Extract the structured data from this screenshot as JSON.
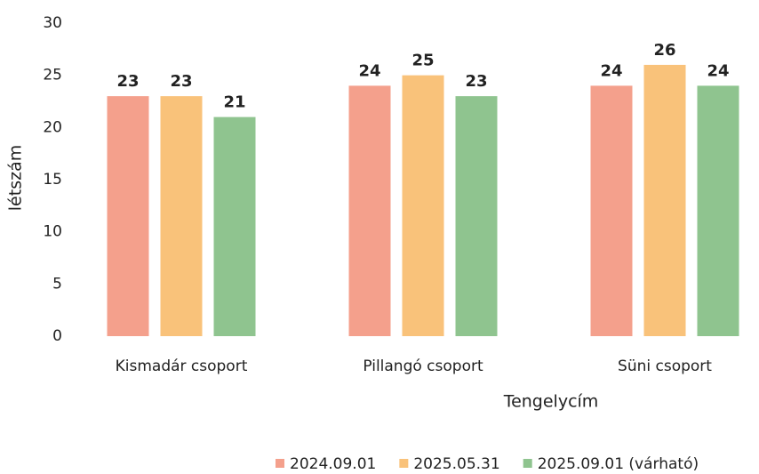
{
  "chart_data": {
    "type": "bar",
    "categories": [
      "Kismadár csoport",
      "Pillangó csoport",
      "Süni csoport"
    ],
    "series": [
      {
        "name": "2024.09.01",
        "color": "#f4a08c",
        "values": [
          23,
          24,
          24
        ]
      },
      {
        "name": "2025.05.31",
        "color": "#f9c27a",
        "values": [
          23,
          25,
          26
        ]
      },
      {
        "name": "2025.09.01 (várható)",
        "color": "#8fc48f",
        "values": [
          21,
          23,
          24
        ]
      }
    ],
    "ylim": [
      0,
      30
    ],
    "yticks": [
      0,
      5,
      10,
      15,
      20,
      25,
      30
    ],
    "x_label": "Tengelycím",
    "y_label": "létszám",
    "grid": false,
    "legend": "bottom"
  }
}
